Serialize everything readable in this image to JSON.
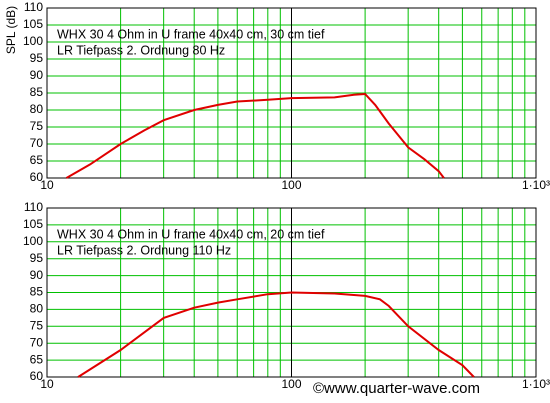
{
  "chart_data": [
    {
      "type": "line",
      "xscale": "log",
      "grid": true,
      "ylabel": "SPL (dB)",
      "annotations": [
        "WHX 30 4 Ohm in U frame 40x40 cm, 30 cm tief",
        "LR Tiefpass 2. Ordnung 80 Hz"
      ],
      "xlim": [
        10,
        1000
      ],
      "ylim": [
        60,
        110
      ],
      "xticks": [
        10,
        100,
        {
          "value": 1000,
          "label": "1·10³"
        }
      ],
      "xgrid_minor": [
        20,
        30,
        40,
        50,
        60,
        70,
        80,
        90,
        200,
        300,
        400,
        500,
        600,
        700,
        800,
        900
      ],
      "yticks": [
        60,
        65,
        70,
        75,
        80,
        85,
        90,
        95,
        100,
        105,
        110
      ],
      "grid_color": "#00c000",
      "major_grid_color": "#000000",
      "series": [
        {
          "color": "#e00000",
          "x": [
            12,
            15,
            20,
            25,
            30,
            40,
            50,
            60,
            80,
            100,
            150,
            180,
            200,
            220,
            250,
            300,
            350,
            400,
            420
          ],
          "values": [
            60,
            64,
            70,
            74,
            77,
            80,
            81.5,
            82.5,
            83,
            83.5,
            83.7,
            84.5,
            84.7,
            81.5,
            76,
            69,
            65.5,
            62,
            60
          ]
        }
      ]
    },
    {
      "type": "line",
      "xscale": "log",
      "grid": true,
      "annotations": [
        "WHX 30 4 Ohm in U frame 40x40 cm, 20 cm tief",
        "LR Tiefpass 2. Ordnung 110 Hz"
      ],
      "xlim": [
        10,
        1000
      ],
      "ylim": [
        60,
        110
      ],
      "xticks": [
        10,
        100,
        {
          "value": 1000,
          "label": "1·10³"
        }
      ],
      "xgrid_minor": [
        20,
        30,
        40,
        50,
        60,
        70,
        80,
        90,
        200,
        300,
        400,
        500,
        600,
        700,
        800,
        900
      ],
      "yticks": [
        60,
        65,
        70,
        75,
        80,
        85,
        90,
        95,
        100,
        105,
        110
      ],
      "grid_color": "#00c000",
      "major_grid_color": "#000000",
      "series": [
        {
          "color": "#e00000",
          "x": [
            13.4,
            20,
            30,
            40,
            50,
            60,
            80,
            100,
            150,
            200,
            230,
            250,
            300,
            400,
            500,
            557
          ],
          "values": [
            60,
            68,
            77.5,
            80.5,
            82,
            83,
            84.5,
            85,
            84.7,
            84,
            83,
            81,
            75,
            68,
            63.5,
            60
          ]
        }
      ]
    }
  ],
  "watermark": "©www.quarter-wave.com"
}
